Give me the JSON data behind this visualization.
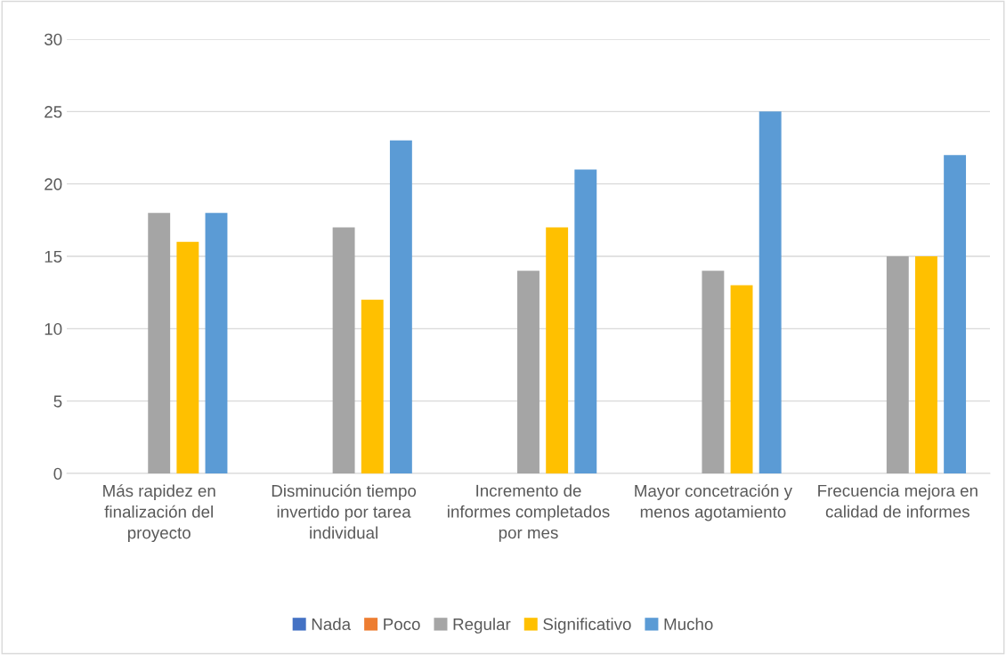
{
  "chart_data": {
    "type": "bar",
    "categories": [
      "Más rapidez en finalización del proyecto",
      "Disminución tiempo invertido por tarea individual",
      "Incremento de informes completados por mes",
      "Mayor concetración y menos agotamiento",
      "Frecuencia mejora en calidad de informes"
    ],
    "series": [
      {
        "name": "Nada",
        "color": "#4472c4",
        "values": [
          0,
          0,
          0,
          0,
          0
        ]
      },
      {
        "name": "Poco",
        "color": "#ed7d31",
        "values": [
          0,
          0,
          0,
          0,
          0
        ]
      },
      {
        "name": "Regular",
        "color": "#a5a5a5",
        "values": [
          18,
          17,
          14,
          14,
          15
        ]
      },
      {
        "name": "Significativo",
        "color": "#ffc000",
        "values": [
          16,
          12,
          17,
          13,
          15
        ]
      },
      {
        "name": "Mucho",
        "color": "#5b9bd5",
        "values": [
          18,
          23,
          21,
          25,
          22
        ]
      }
    ],
    "ylim": [
      0,
      30
    ],
    "yticks": [
      0,
      5,
      10,
      15,
      20,
      25,
      30
    ],
    "grid": "y",
    "legend": "bottom"
  }
}
